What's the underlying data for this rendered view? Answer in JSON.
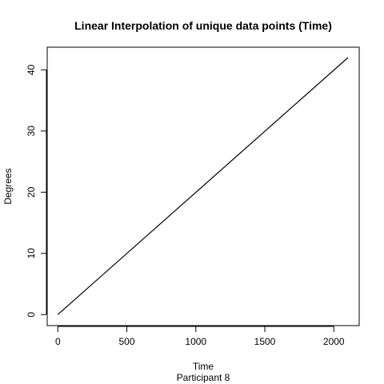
{
  "chart_data": {
    "type": "line",
    "title": "Linear Interpolation of unique data points (Time)",
    "xlabel": "Time",
    "subtitle": "Participant  8",
    "ylabel": "Degrees",
    "xlim": [
      -77,
      2184
    ],
    "ylim": [
      -1.8,
      43.7
    ],
    "x_ticks": [
      0,
      500,
      1000,
      1500,
      2000
    ],
    "y_ticks": [
      0,
      10,
      20,
      30,
      40
    ],
    "grid": false,
    "legend": "none",
    "line_color": "#000000",
    "series": [
      {
        "x": [
          0,
          2103
        ],
        "y": [
          0,
          42
        ]
      }
    ]
  }
}
